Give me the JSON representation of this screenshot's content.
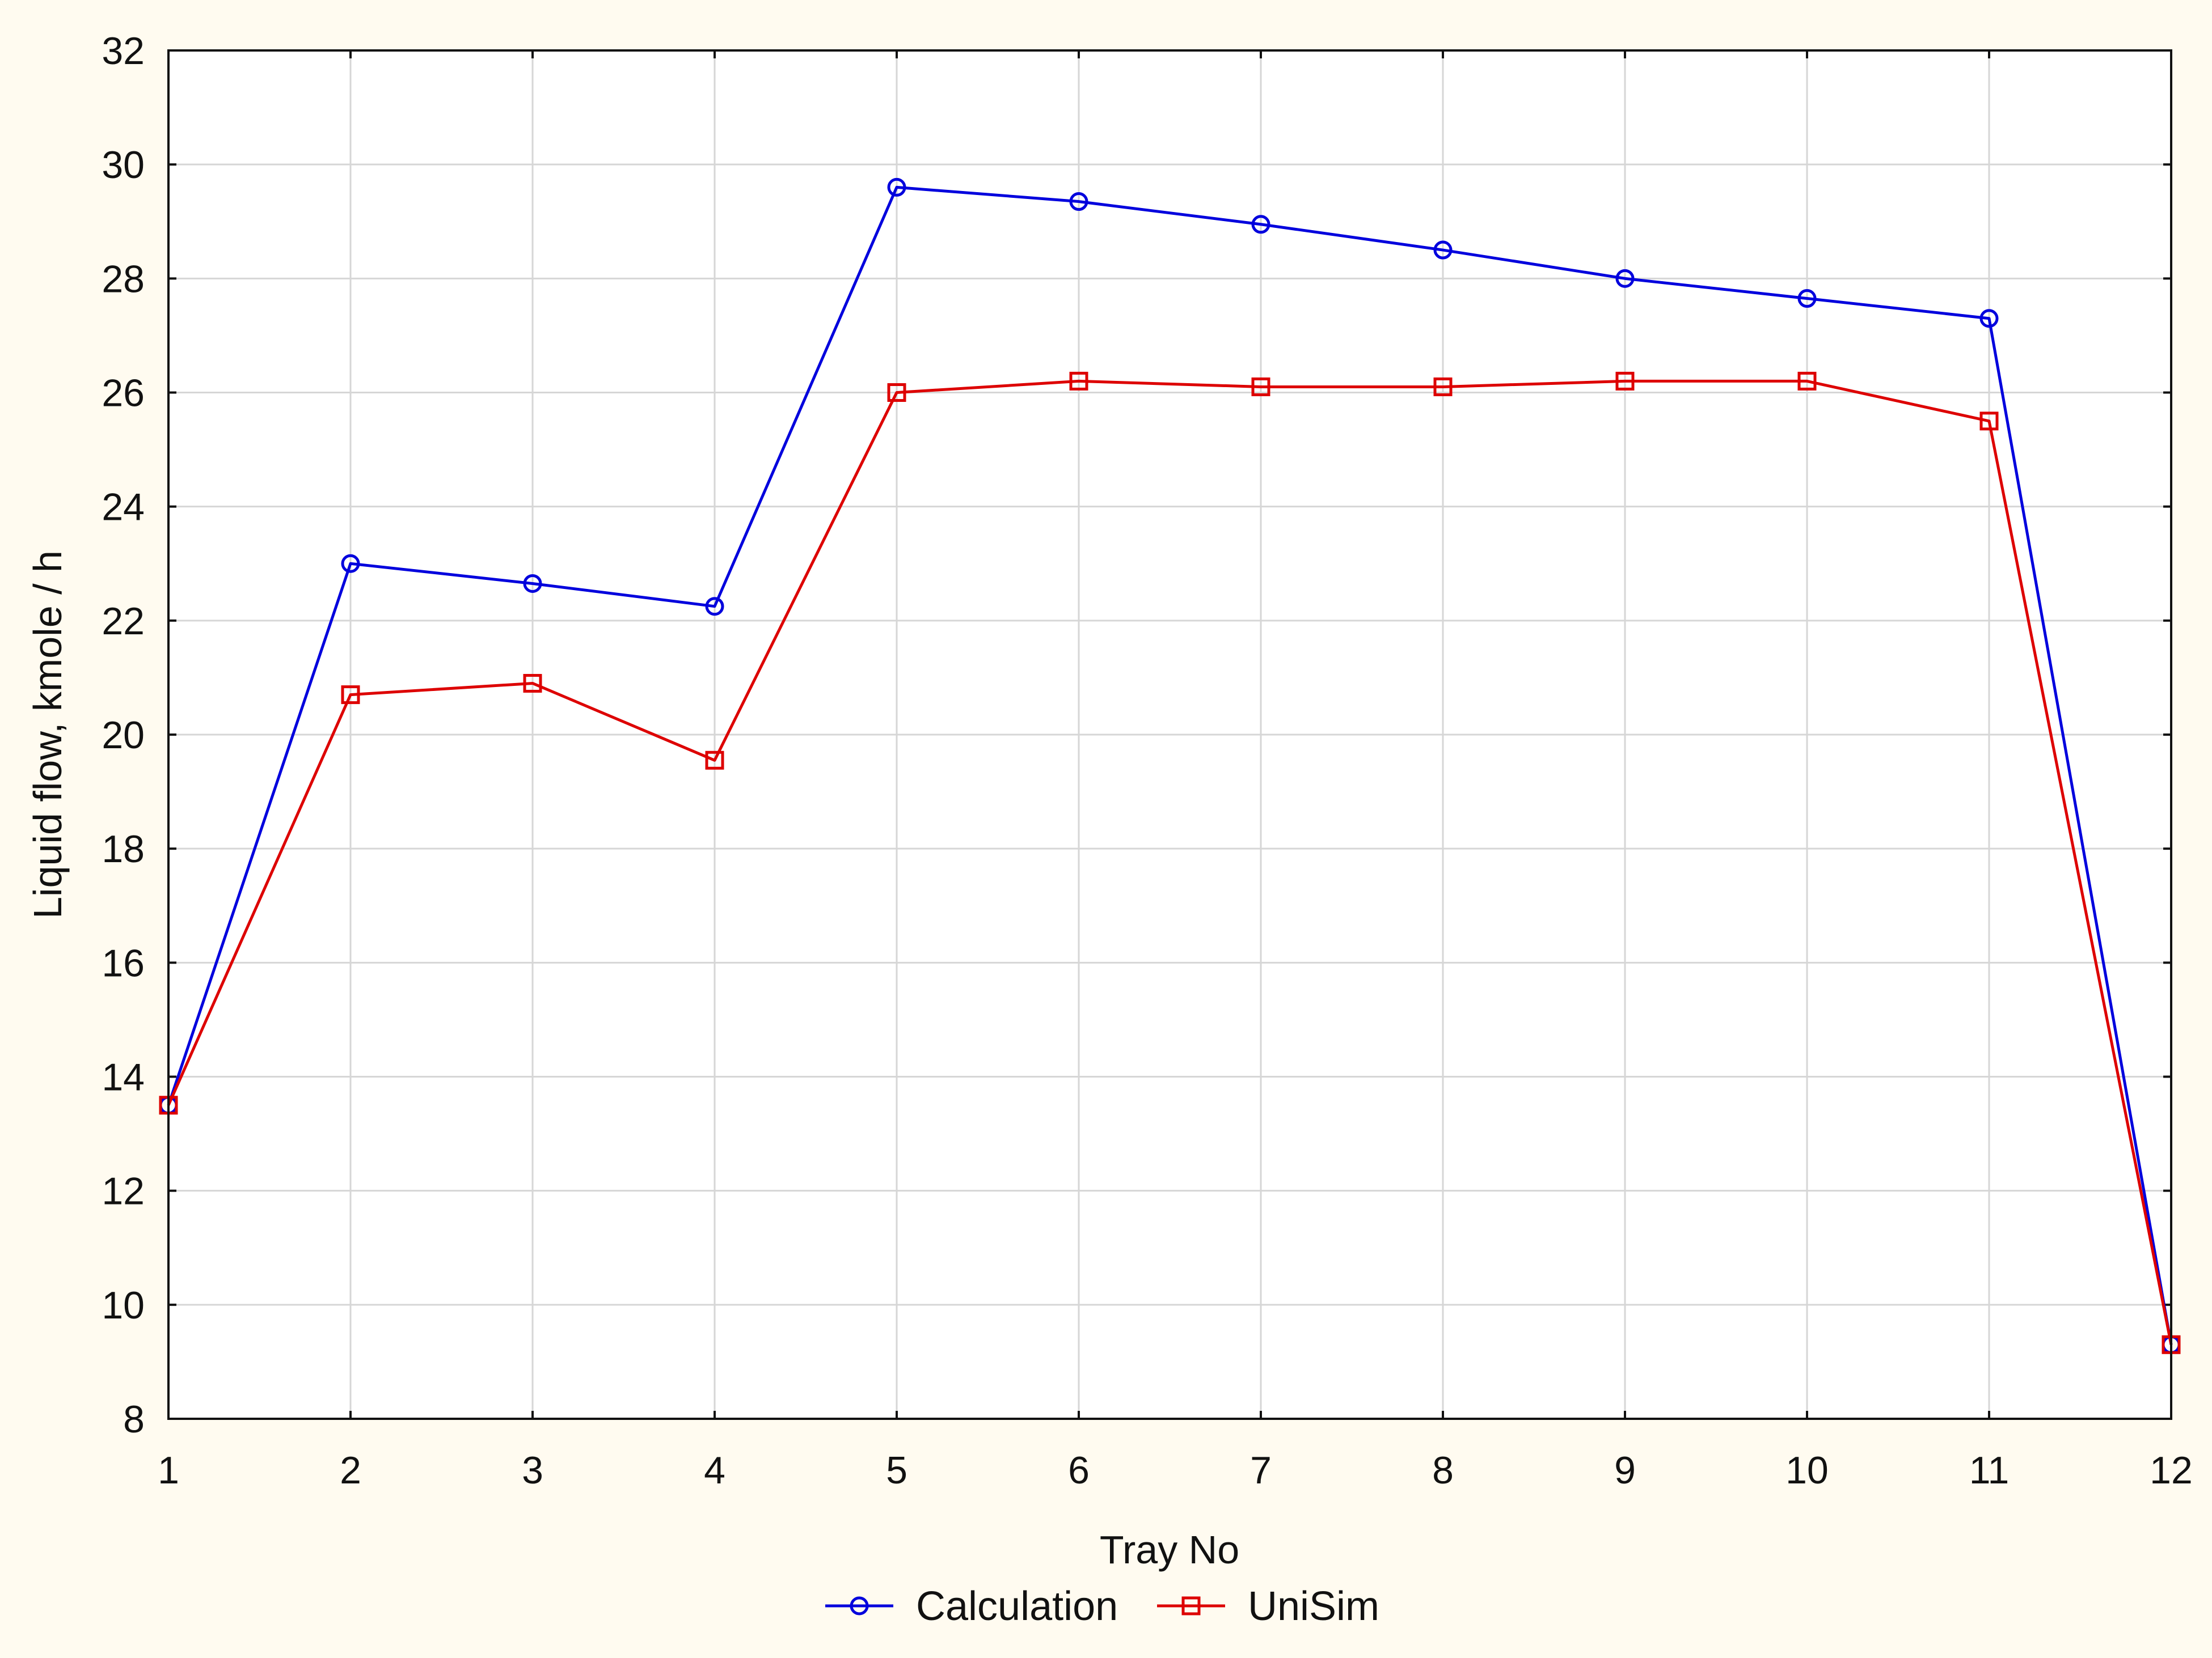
{
  "chart_data": {
    "type": "line",
    "title": "",
    "xlabel": "Tray No",
    "ylabel": "Liquid flow, kmole / h",
    "x": [
      1,
      2,
      3,
      4,
      5,
      6,
      7,
      8,
      9,
      10,
      11,
      12
    ],
    "xlim": [
      1,
      12
    ],
    "ylim": [
      8,
      32
    ],
    "xticks": [
      "1",
      "2",
      "3",
      "4",
      "5",
      "6",
      "7",
      "8",
      "9",
      "10",
      "11",
      "12"
    ],
    "yticks": [
      "8",
      "10",
      "12",
      "14",
      "16",
      "18",
      "20",
      "22",
      "24",
      "26",
      "28",
      "30",
      "32"
    ],
    "grid": true,
    "legend_position": "bottom",
    "series": [
      {
        "name": "Calculation",
        "color": "#0000dd",
        "marker": "circle",
        "values": [
          13.5,
          23.0,
          22.65,
          22.25,
          29.6,
          29.35,
          28.95,
          28.5,
          28.0,
          27.65,
          27.3,
          9.3
        ]
      },
      {
        "name": "UniSim",
        "color": "#dd0000",
        "marker": "square",
        "values": [
          13.5,
          20.7,
          20.9,
          19.55,
          26.0,
          26.2,
          26.1,
          26.1,
          26.2,
          26.2,
          25.5,
          9.3
        ]
      }
    ]
  }
}
